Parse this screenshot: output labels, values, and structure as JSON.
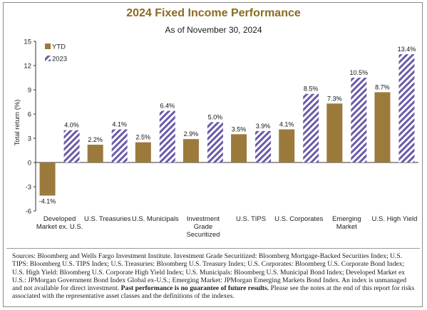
{
  "chart_data": {
    "type": "bar",
    "title": "2024 Fixed Income Performance",
    "subtitle": "As of November 30, 2024",
    "ylabel": "Total return (%)",
    "xlabel": "",
    "ylim": [
      -6,
      15
    ],
    "yticks": [
      15,
      12,
      9,
      6,
      3,
      0,
      -3,
      -6
    ],
    "categories": [
      [
        "Developed",
        "Market ex. U.S."
      ],
      [
        "U.S. Treasuries"
      ],
      [
        "U.S. Municipals"
      ],
      [
        "Investment",
        "Grade",
        "Securitized"
      ],
      [
        "U.S. TIPS"
      ],
      [
        "U.S. Corporates"
      ],
      [
        "Emerging",
        "Market"
      ],
      [
        "U.S. High Yield"
      ]
    ],
    "series": [
      {
        "name": "YTD",
        "values": [
          -4.1,
          2.2,
          2.5,
          2.9,
          3.5,
          4.1,
          7.3,
          8.7
        ],
        "labels": [
          "-4.1%",
          "2.2%",
          "2.5%",
          "2.9%",
          "3.5%",
          "4.1%",
          "7.3%",
          "8.7%"
        ],
        "color": "#9c7a3c",
        "pattern": "solid"
      },
      {
        "name": "2023",
        "values": [
          4.0,
          4.1,
          6.4,
          5.0,
          3.9,
          8.5,
          10.5,
          13.4
        ],
        "labels": [
          "4.0%",
          "4.1%",
          "6.4%",
          "5.0%",
          "3.9%",
          "8.5%",
          "10.5%",
          "13.4%"
        ],
        "color": "#6b5aa8",
        "pattern": "diagonal-stripes"
      }
    ],
    "legend_position": "top-left",
    "grid": false
  },
  "footnote": {
    "part1": "Sources: Bloomberg and Wells Fargo Investment Institute. Investment Grade Securitized: Bloomberg Mortgage-Backed Securities Index; U.S. TIPS: Bloomberg U.S. TIPS Index; U.S. Treasuries: Bloomberg U.S. Treasury Index; U.S. Corporates: Bloomberg U.S. Corporate Bond Index; U.S. High Yield: Bloomberg U.S. Corporate High Yield Index; U.S. Municipals: Bloomberg U.S. Municipal Bond Index; Developed Market ex U.S.: JPMorgan Government Bond Index Global ex-U.S.; Emerging Market: JPMorgan Emerging Markets Bond Index. An index is unmanaged and not available for direct investment.",
    "bold": "Past performance is no guarantee of future results.",
    "part2": "Please see the notes at the end of this report for risks associated with the representative asset classes and the definitions of the indexes."
  }
}
